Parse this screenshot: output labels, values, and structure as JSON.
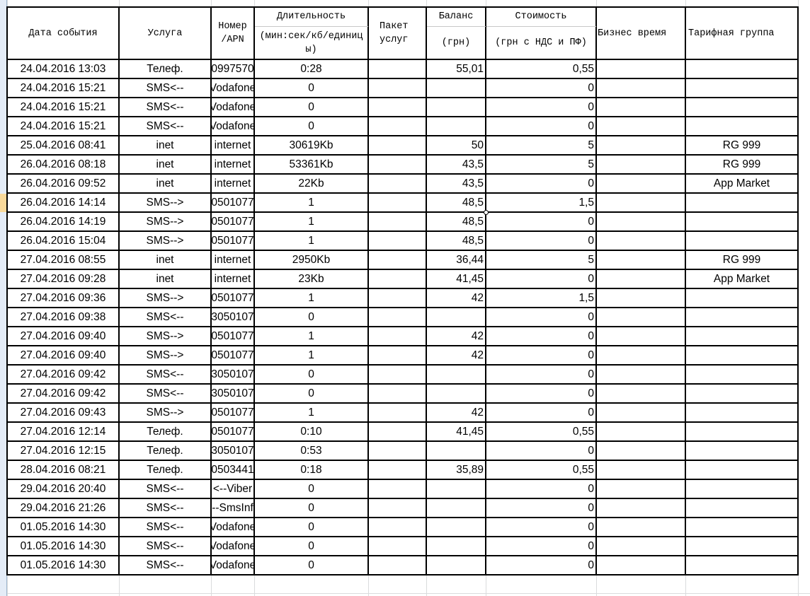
{
  "header": {
    "date": "Дата события",
    "service": "Услуга",
    "number": "Номер\n/APN",
    "duration_top": "Длительность",
    "duration_bottom": "(мин:сек/кб/единицы)",
    "package": "Пакет\nуслуг",
    "balance_top": "Баланс",
    "balance_bottom": "(грн)",
    "cost_top": "Стоимость",
    "cost_bottom": "(грн с НДС и ПФ)",
    "business_time": "Бизнес время",
    "tariff_group": "Тарифная группа"
  },
  "selected_row_index": 7,
  "rows": [
    [
      "24.04.2016 13:03",
      "Телеф.",
      "0997570",
      "0:28",
      "",
      "55,01",
      "0,55",
      "",
      ""
    ],
    [
      "24.04.2016 15:21",
      "SMS<--",
      "Vodafone",
      "0",
      "",
      "",
      "0",
      "",
      ""
    ],
    [
      "24.04.2016 15:21",
      "SMS<--",
      "Vodafone",
      "0",
      "",
      "",
      "0",
      "",
      ""
    ],
    [
      "24.04.2016 15:21",
      "SMS<--",
      "Vodafone",
      "0",
      "",
      "",
      "0",
      "",
      ""
    ],
    [
      "25.04.2016 08:41",
      "inet",
      "internet",
      "30619Kb",
      "",
      "50",
      "5",
      "",
      "RG 999"
    ],
    [
      "26.04.2016 08:18",
      "inet",
      "internet",
      "53361Kb",
      "",
      "43,5",
      "5",
      "",
      "RG 999"
    ],
    [
      "26.04.2016 09:52",
      "inet",
      "internet",
      "22Kb",
      "",
      "43,5",
      "0",
      "",
      "App Market"
    ],
    [
      "26.04.2016 14:14",
      "SMS-->",
      "0501077",
      "1",
      "",
      "48,5",
      "1,5",
      "",
      ""
    ],
    [
      "26.04.2016 14:19",
      "SMS-->",
      "0501077",
      "1",
      "",
      "48,5",
      "0",
      "",
      ""
    ],
    [
      "26.04.2016 15:04",
      "SMS-->",
      "0501077",
      "1",
      "",
      "48,5",
      "0",
      "",
      ""
    ],
    [
      "27.04.2016 08:55",
      "inet",
      "internet",
      "2950Kb",
      "",
      "36,44",
      "5",
      "",
      "RG 999"
    ],
    [
      "27.04.2016 09:28",
      "inet",
      "internet",
      "23Kb",
      "",
      "41,45",
      "0",
      "",
      "App Market"
    ],
    [
      "27.04.2016 09:36",
      "SMS-->",
      "0501077",
      "1",
      "",
      "42",
      "1,5",
      "",
      ""
    ],
    [
      "27.04.2016 09:38",
      "SMS<--",
      "3050107",
      "0",
      "",
      "",
      "0",
      "",
      ""
    ],
    [
      "27.04.2016 09:40",
      "SMS-->",
      "0501077",
      "1",
      "",
      "42",
      "0",
      "",
      ""
    ],
    [
      "27.04.2016 09:40",
      "SMS-->",
      "0501077",
      "1",
      "",
      "42",
      "0",
      "",
      ""
    ],
    [
      "27.04.2016 09:42",
      "SMS<--",
      "3050107",
      "0",
      "",
      "",
      "0",
      "",
      ""
    ],
    [
      "27.04.2016 09:42",
      "SMS<--",
      "3050107",
      "0",
      "",
      "",
      "0",
      "",
      ""
    ],
    [
      "27.04.2016 09:43",
      "SMS-->",
      "0501077",
      "1",
      "",
      "42",
      "0",
      "",
      ""
    ],
    [
      "27.04.2016 12:14",
      "Телеф.",
      "0501077",
      "0:10",
      "",
      "41,45",
      "0,55",
      "",
      ""
    ],
    [
      "27.04.2016 12:15",
      "Телеф.",
      "3050107",
      "0:53",
      "",
      "",
      "0",
      "",
      ""
    ],
    [
      "28.04.2016 08:21",
      "Телеф.",
      "0503441",
      "0:18",
      "",
      "35,89",
      "0,55",
      "",
      ""
    ],
    [
      "29.04.2016 20:40",
      "SMS<--",
      "<--Viber",
      "0",
      "",
      "",
      "0",
      "",
      ""
    ],
    [
      "29.04.2016 21:26",
      "SMS<--",
      "--SmsInf",
      "0",
      "",
      "",
      "0",
      "",
      ""
    ],
    [
      "01.05.2016 14:30",
      "SMS<--",
      "Vodafone",
      "0",
      "",
      "",
      "0",
      "",
      ""
    ],
    [
      "01.05.2016 14:30",
      "SMS<--",
      "Vodafone",
      "0",
      "",
      "",
      "0",
      "",
      ""
    ],
    [
      "01.05.2016 14:30",
      "SMS<--",
      "Vodafone",
      "0",
      "",
      "",
      "0",
      "",
      ""
    ]
  ]
}
